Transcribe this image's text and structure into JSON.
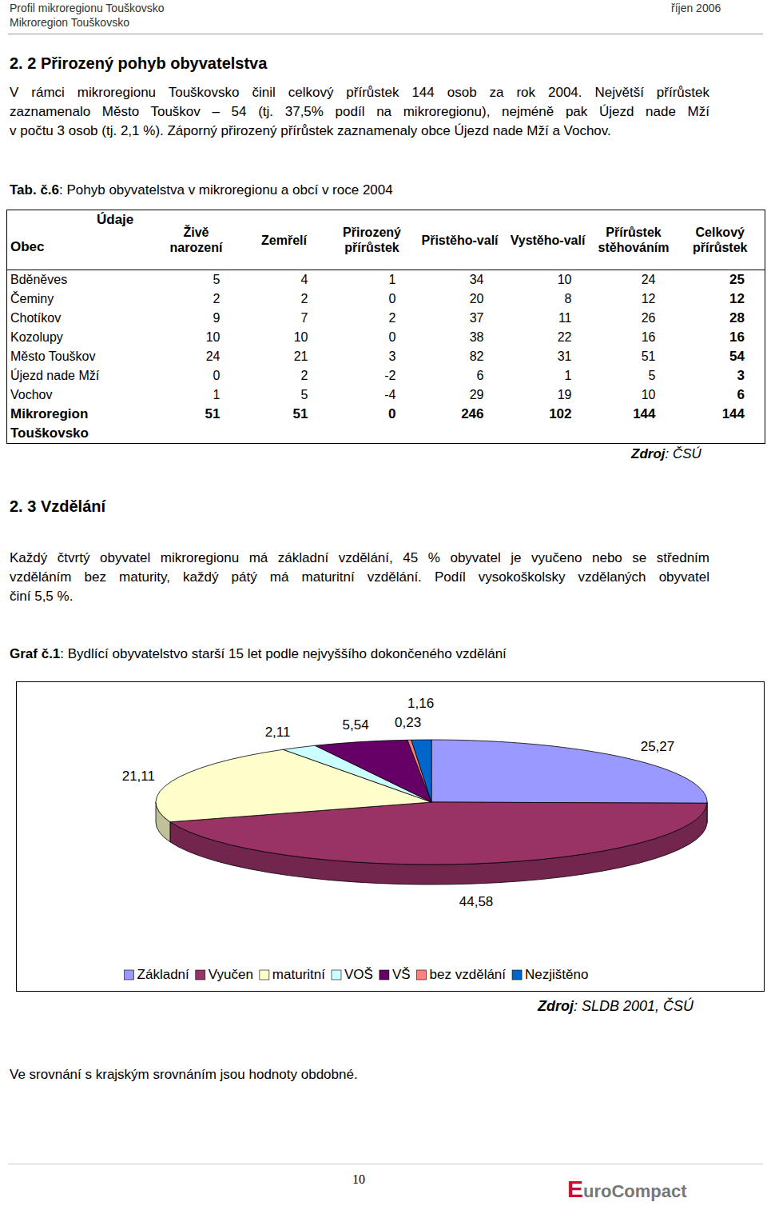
{
  "header": {
    "title": "Profil mikroregionu Touškovsko",
    "subtitle": "Mikroregion Touškovsko",
    "date": "říjen 2006"
  },
  "section1": {
    "heading": "2. 2 Přirozený pohyb obyvatelstva",
    "paragraph": [
      "V rámci mikroregionu Touškovsko činil celkový přírůstek 144 osob za rok 2004. Největší přírůstek",
      "zaznamenalo Město Touškov – 54 (tj. 37,5% podíl na mikroregionu), nejméně pak Újezd nade Mží",
      "v počtu 3 osob (tj. 2,1 %). Záporný přirozený přírůstek zaznamenaly obce Újezd nade Mží a Vochov."
    ]
  },
  "table": {
    "caption": "Tab. č.6: Pohyb obyvatelstva v mikroregionu a obcí v roce 2004",
    "corner_top": "Údaje",
    "corner_bottom": "Obec",
    "columns": [
      "Živě narození",
      "Zemřelí",
      "Přirozený přírůstek",
      "Přistěho-valí",
      "Vystěho-valí",
      "Přírůstek stěhováním",
      "Celkový přírůstek"
    ],
    "rows": [
      [
        "Bděněves",
        5,
        4,
        1,
        34,
        10,
        24,
        25
      ],
      [
        "Čeminy",
        2,
        2,
        0,
        20,
        8,
        12,
        12
      ],
      [
        "Chotíkov",
        9,
        7,
        2,
        37,
        11,
        26,
        28
      ],
      [
        "Kozolupy",
        10,
        10,
        0,
        38,
        22,
        16,
        16
      ],
      [
        "Město Touškov",
        24,
        21,
        3,
        82,
        31,
        51,
        54
      ],
      [
        "Újezd nade Mží",
        0,
        2,
        -2,
        6,
        1,
        5,
        3
      ],
      [
        "Vochov",
        1,
        5,
        -4,
        29,
        19,
        10,
        6
      ],
      [
        "Mikroregion Touškovsko",
        51,
        51,
        0,
        246,
        102,
        144,
        144
      ]
    ],
    "source": "Zdroj: ČSÚ"
  },
  "section2": {
    "heading": "2. 3 Vzdělání",
    "paragraph": [
      "Každý čtvrtý obyvatel mikroregionu má základní vzdělání, 45 % obyvatel je vyučeno nebo se středním",
      "vzděláním bez maturity, každý pátý má maturitní vzdělání. Podíl vysokoškolsky vzdělaných obyvatel",
      "činí 5,5 %."
    ]
  },
  "chart_data": {
    "type": "pie",
    "title": "Graf č.1: Bydlící obyvatelstvo starší 15 let podle nejvyššího dokončeného vzdělání",
    "categories": [
      "Základní",
      "Vyučen",
      "maturitní",
      "VOŠ",
      "VŠ",
      "bez vzdělání",
      "Nezjištěno"
    ],
    "values": [
      25.27,
      44.58,
      21.11,
      2.11,
      5.54,
      0.23,
      1.16
    ],
    "value_labels": [
      "25,27",
      "44,58",
      "21,11",
      "2,11",
      "5,54",
      "0,23",
      "1,16"
    ],
    "colors": [
      "#9999ff",
      "#993366",
      "#ffffcc",
      "#ccffff",
      "#660066",
      "#ff8080",
      "#0066cc"
    ],
    "data_labels": true,
    "legend": "bottom",
    "source": "Zdroj: SLDB 2001, ČSÚ"
  },
  "closing": "Ve srovnání s krajským srovnáním jsou hodnoty obdobné.",
  "footer": {
    "page": "10",
    "logo": "EuroCompact"
  }
}
